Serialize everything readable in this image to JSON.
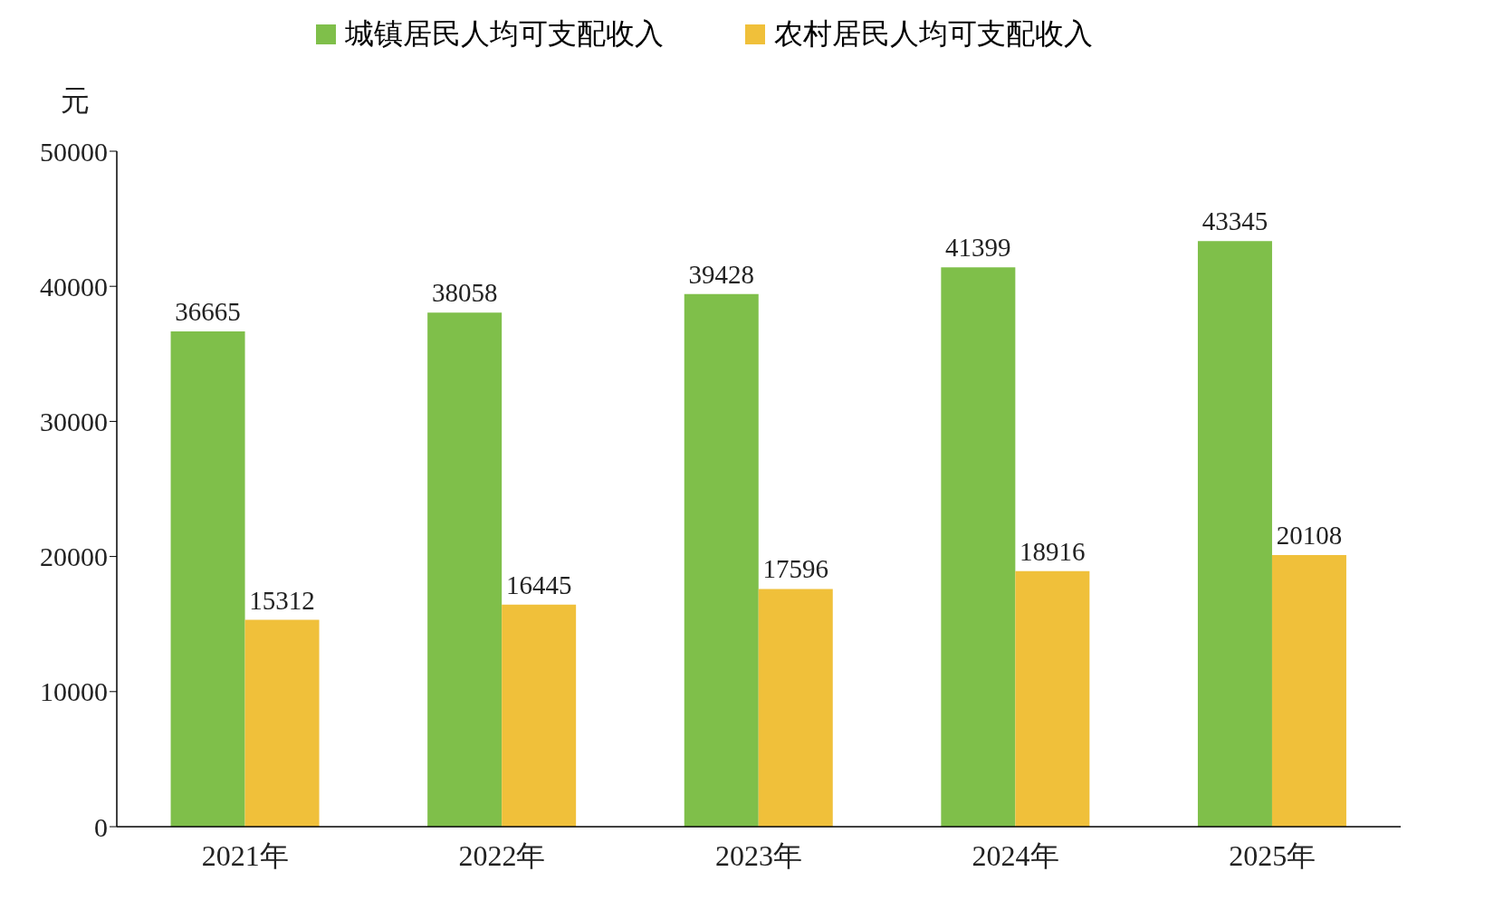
{
  "chart_data": {
    "type": "bar",
    "categories": [
      "2021年",
      "2022年",
      "2023年",
      "2024年",
      "2025年"
    ],
    "ylabel": "元",
    "ylim": [
      0,
      50000
    ],
    "yticks": [
      0,
      10000,
      20000,
      30000,
      40000,
      50000
    ],
    "grid": false,
    "legend": "top",
    "data_labels": true,
    "series": [
      {
        "name": "城镇居民人均可支配收入",
        "color": "#7fbf4a",
        "values": [
          36665,
          38058,
          39428,
          41399,
          43345
        ]
      },
      {
        "name": "农村居民人均可支配收入",
        "color": "#f0c03a",
        "values": [
          15312,
          16445,
          17596,
          18916,
          20108
        ]
      }
    ]
  }
}
